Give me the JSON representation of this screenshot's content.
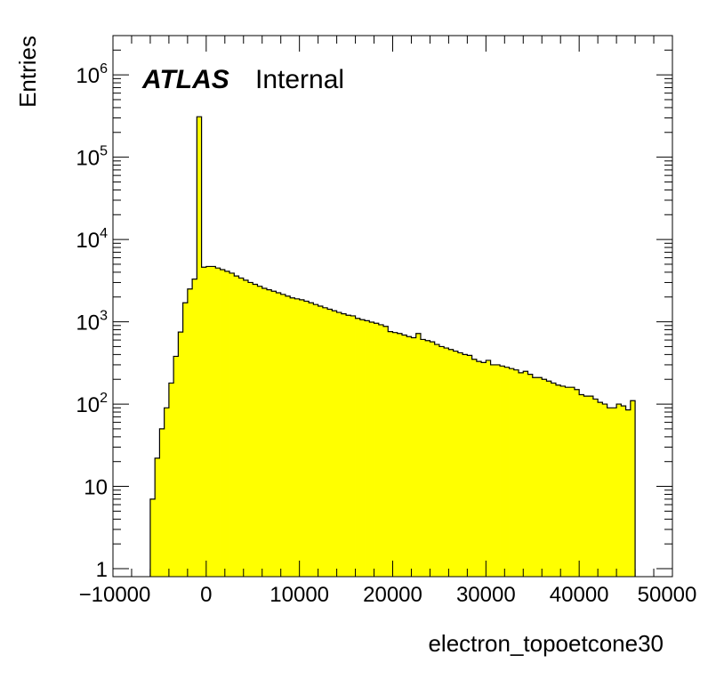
{
  "chart_data": {
    "type": "histogram",
    "xlabel": "electron_topoetcone30",
    "ylabel": "Entries",
    "xlim": [
      -10000,
      50000
    ],
    "ylim": [
      0.8,
      3000000
    ],
    "yscale": "log",
    "x_ticks": [
      -10000,
      0,
      10000,
      20000,
      30000,
      40000,
      50000
    ],
    "x_tick_labels": [
      "−10000",
      "0",
      "10000",
      "20000",
      "30000",
      "40000",
      "50000"
    ],
    "y_ticks": [
      {
        "value": 1,
        "base": "1",
        "exp": ""
      },
      {
        "value": 10,
        "base": "10",
        "exp": ""
      },
      {
        "value": 100,
        "base": "10",
        "exp": "2"
      },
      {
        "value": 1000,
        "base": "10",
        "exp": "3"
      },
      {
        "value": 10000,
        "base": "10",
        "exp": "4"
      },
      {
        "value": 100000,
        "base": "10",
        "exp": "5"
      },
      {
        "value": 1000000,
        "base": "10",
        "exp": "6"
      }
    ],
    "label_main": "ATLAS",
    "label_sub": "Internal",
    "fill_color": "#ffff00",
    "line_color": "#000000",
    "bin_edges_start": -6000,
    "bin_width": 500,
    "values": [
      7,
      22,
      50,
      90,
      180,
      380,
      750,
      1700,
      2500,
      3300,
      310000,
      4600,
      4700,
      4700,
      4500,
      4300,
      4100,
      3900,
      3600,
      3400,
      3200,
      3000,
      2850,
      2700,
      2550,
      2450,
      2350,
      2250,
      2150,
      2050,
      1950,
      1900,
      1850,
      1780,
      1700,
      1620,
      1550,
      1480,
      1420,
      1360,
      1300,
      1250,
      1200,
      1180,
      1100,
      1060,
      1030,
      990,
      960,
      920,
      880,
      760,
      740,
      720,
      690,
      660,
      640,
      720,
      610,
      590,
      570,
      530,
      500,
      480,
      460,
      440,
      420,
      400,
      390,
      350,
      330,
      320,
      340,
      300,
      300,
      290,
      280,
      270,
      260,
      240,
      250,
      230,
      210,
      210,
      200,
      190,
      180,
      170,
      165,
      160,
      160,
      150,
      130,
      125,
      125,
      115,
      105,
      100,
      90,
      90,
      100,
      95,
      85,
      110
    ]
  }
}
